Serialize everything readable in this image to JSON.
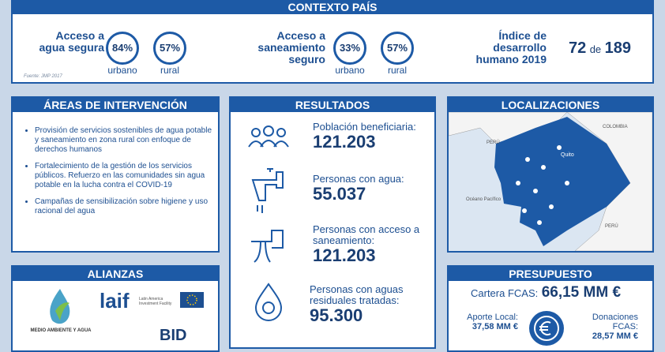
{
  "contexto": {
    "title": "CONTEXTO PAÍS",
    "agua": {
      "label": "Acceso a agua segura",
      "items": [
        {
          "value": "84%",
          "label": "urbano"
        },
        {
          "value": "57%",
          "label": "rural"
        }
      ]
    },
    "saneamiento": {
      "label": "Acceso a saneamiento seguro",
      "items": [
        {
          "value": "33%",
          "label": "urbano"
        },
        {
          "value": "57%",
          "label": "rural"
        }
      ]
    },
    "idh": {
      "label": "Índice de desarrollo humano 2019",
      "rank": "72",
      "sep": "de",
      "total": "189"
    },
    "source": "Fuente: JMP 2017"
  },
  "areas": {
    "title": "ÁREAS DE INTERVENCIÓN",
    "items": [
      "Provisión de servicios sostenibles de agua potable y saneamiento en zona rural con enfoque de derechos humanos",
      "Fortalecimiento de la gestión de los servicios públicos. Refuerzo en las comunidades sin agua potable en la lucha contra el COVID-19",
      "Campañas de sensibilización sobre higiene y uso racional del agua"
    ]
  },
  "resultados": {
    "title": "RESULTADOS",
    "items": [
      {
        "label": "Población beneficiaria:",
        "value": "121.203"
      },
      {
        "label": "Personas con agua:",
        "value": "55.037"
      },
      {
        "label": "Personas con acceso a saneamiento:",
        "value": "121.203"
      },
      {
        "label": "Personas con aguas residuales tratadas:",
        "value": "95.300"
      }
    ]
  },
  "localizaciones": {
    "title": "LOCALIZACIONES",
    "labels": {
      "colombia": "COLOMBIA",
      "peru_north": "PERÚ",
      "quito": "Quito",
      "ocean": "Océano Pacífico",
      "peru_south": "PERÚ"
    }
  },
  "alianzas": {
    "title": "ALIANZAS",
    "logos": {
      "ministerio": "MEDIO AMBIENTE Y AGUA",
      "laif": "laif",
      "laif_sub": "Latin America Investment Facility",
      "bid": "BID"
    }
  },
  "presupuesto": {
    "title": "PRESUPUESTO",
    "cartera": {
      "label": "Cartera FCAS:",
      "value": "66,15 MM €"
    },
    "aporte": {
      "label": "Aporte Local:",
      "value": "37,58 MM €"
    },
    "donaciones": {
      "label": "Donaciones FCAS:",
      "value": "28,57 MM €"
    }
  }
}
